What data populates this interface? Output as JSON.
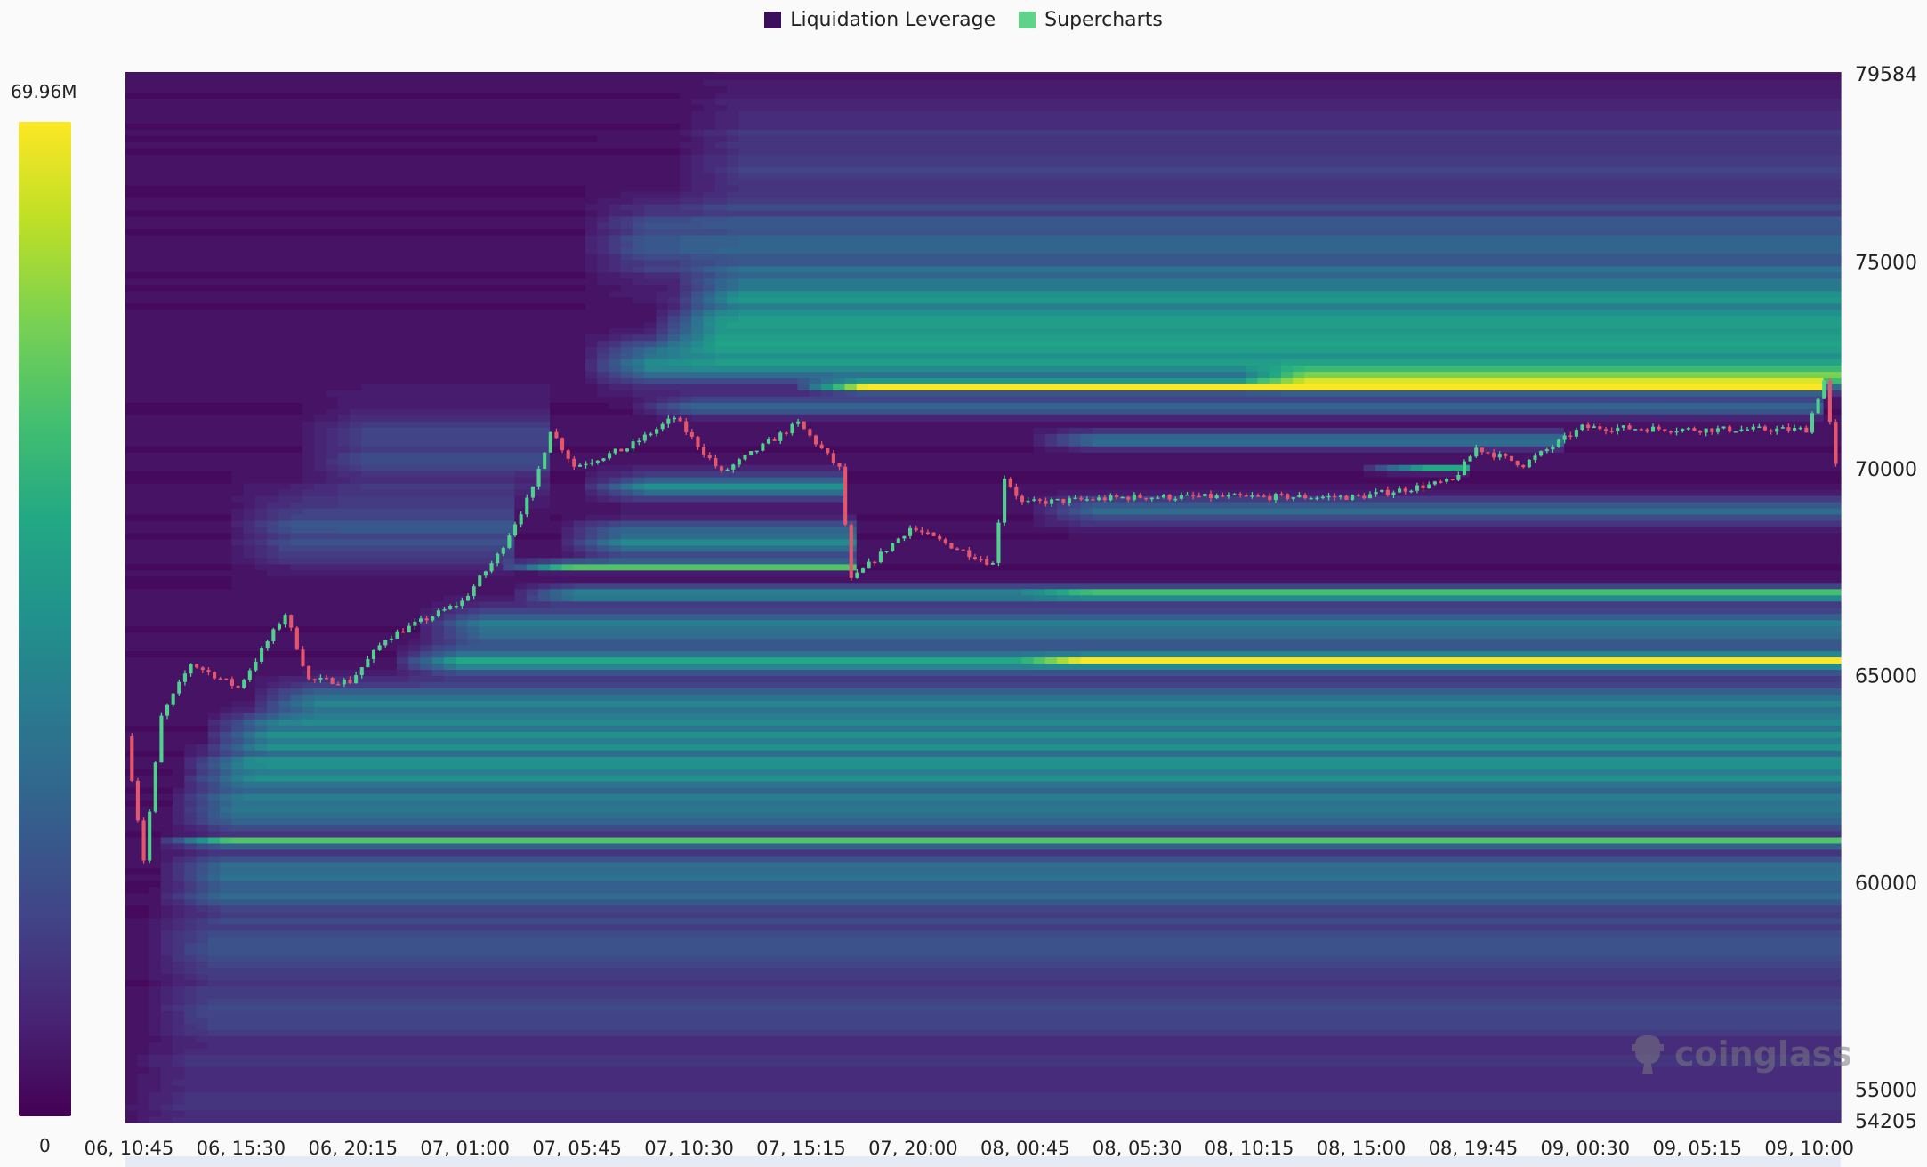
{
  "legend": [
    {
      "label": "Liquidation Leverage",
      "color": "#3b0f5c"
    },
    {
      "label": "Supercharts",
      "color": "#5fd38a"
    }
  ],
  "colorbar": {
    "max_label": "69.96M",
    "min_label": "0"
  },
  "watermark": "coinglass",
  "chart_data": {
    "type": "heatmap",
    "title": "",
    "colorscale": "viridis",
    "value_range": [
      0,
      69.96
    ],
    "y_range": [
      54205,
      79584
    ],
    "y_ticks": [
      "79584",
      "75000",
      "70000",
      "65000",
      "60000",
      "55000",
      "54205"
    ],
    "x_range": [
      "06, 10:36",
      "09, 11:20"
    ],
    "x_ticks": [
      "06, 10:45",
      "06, 15:30",
      "06, 20:15",
      "07, 01:00",
      "07, 05:45",
      "07, 10:30",
      "07, 15:15",
      "07, 20:00",
      "08, 00:45",
      "08, 05:30",
      "08, 10:15",
      "08, 15:00",
      "08, 19:45",
      "09, 00:30",
      "09, 05:15",
      "09, 10:00"
    ],
    "candle_colors": {
      "up": "#4fd08c",
      "down": "#e6566b"
    },
    "price_path": [
      {
        "t": "06, 10:45",
        "p": 63530
      },
      {
        "t": "06, 11:30",
        "p": 60560
      },
      {
        "t": "06, 12:15",
        "p": 64000
      },
      {
        "t": "06, 13:30",
        "p": 65300
      },
      {
        "t": "06, 15:30",
        "p": 64710
      },
      {
        "t": "06, 17:30",
        "p": 66500
      },
      {
        "t": "06, 18:30",
        "p": 64900
      },
      {
        "t": "06, 20:15",
        "p": 64860
      },
      {
        "t": "06, 21:45",
        "p": 65900
      },
      {
        "t": "07, 01:00",
        "p": 66790
      },
      {
        "t": "07, 02:30",
        "p": 67900
      },
      {
        "t": "07, 04:00",
        "p": 69500
      },
      {
        "t": "07, 04:45",
        "p": 70950
      },
      {
        "t": "07, 05:45",
        "p": 70060
      },
      {
        "t": "07, 08:00",
        "p": 70500
      },
      {
        "t": "07, 10:00",
        "p": 71240
      },
      {
        "t": "07, 12:00",
        "p": 69900
      },
      {
        "t": "07, 15:15",
        "p": 71100
      },
      {
        "t": "07, 17:00",
        "p": 70000
      },
      {
        "t": "07, 17:30",
        "p": 67300
      },
      {
        "t": "07, 20:00",
        "p": 68570
      },
      {
        "t": "07, 23:30",
        "p": 67700
      },
      {
        "t": "08, 00:00",
        "p": 69800
      },
      {
        "t": "08, 00:45",
        "p": 69170
      },
      {
        "t": "08, 05:30",
        "p": 69320
      },
      {
        "t": "08, 15:00",
        "p": 69320
      },
      {
        "t": "08, 19:00",
        "p": 69700
      },
      {
        "t": "08, 20:00",
        "p": 70500
      },
      {
        "t": "08, 22:00",
        "p": 70100
      },
      {
        "t": "09, 00:30",
        "p": 71000
      },
      {
        "t": "09, 05:15",
        "p": 70950
      },
      {
        "t": "09, 10:00",
        "p": 70950
      },
      {
        "t": "09, 10:45",
        "p": 72130
      },
      {
        "t": "09, 11:15",
        "p": 70060
      }
    ],
    "liquidation_levels": [
      {
        "price": 55000,
        "strength": 8,
        "spread": 1200,
        "start": "06, 10:36"
      },
      {
        "price": 57000,
        "strength": 10,
        "spread": 900,
        "start": "06, 11:30"
      },
      {
        "price": 58500,
        "strength": 14,
        "spread": 700,
        "start": "06, 11:30"
      },
      {
        "price": 59700,
        "strength": 16,
        "spread": 500,
        "start": "06, 12:00"
      },
      {
        "price": 60300,
        "strength": 22,
        "spread": 400,
        "start": "06, 12:00"
      },
      {
        "price": 61000,
        "strength": 42,
        "spread": 120,
        "start": "06, 12:00"
      },
      {
        "price": 61800,
        "strength": 26,
        "spread": 500,
        "start": "06, 12:30"
      },
      {
        "price": 62700,
        "strength": 30,
        "spread": 500,
        "start": "06, 13:00"
      },
      {
        "price": 63600,
        "strength": 30,
        "spread": 500,
        "start": "06, 14:00"
      },
      {
        "price": 64400,
        "strength": 26,
        "spread": 400,
        "start": "06, 16:00"
      },
      {
        "price": 65400,
        "strength": 34,
        "spread": 300,
        "start": "06, 22:00"
      },
      {
        "price": 65400,
        "strength": 30,
        "spread": 100,
        "start": "08, 00:45"
      },
      {
        "price": 66200,
        "strength": 28,
        "spread": 400,
        "start": "06, 23:00"
      },
      {
        "price": 67000,
        "strength": 30,
        "spread": 200,
        "start": "07, 03:00"
      },
      {
        "price": 67000,
        "strength": 22,
        "spread": 100,
        "start": "08, 00:45"
      },
      {
        "price": 67650,
        "strength": 60,
        "spread": 100,
        "start": "07, 02:30"
      },
      {
        "price": 68300,
        "strength": 28,
        "spread": 400,
        "start": "07, 05:00"
      },
      {
        "price": 68500,
        "strength": 15,
        "spread": 800,
        "start": "06, 15:00"
      },
      {
        "price": 69000,
        "strength": 22,
        "spread": 300,
        "start": "08, 01:00"
      },
      {
        "price": 69600,
        "strength": 28,
        "spread": 300,
        "start": "07, 06:00"
      },
      {
        "price": 70000,
        "strength": 40,
        "spread": 80,
        "start": "08, 15:00"
      },
      {
        "price": 70500,
        "strength": 12,
        "spread": 1000,
        "start": "06, 18:00"
      },
      {
        "price": 70700,
        "strength": 25,
        "spread": 200,
        "start": "08, 01:00"
      },
      {
        "price": 71500,
        "strength": 25,
        "spread": 200,
        "start": "07, 08:00"
      },
      {
        "price": 72000,
        "strength": 62,
        "spread": 120,
        "start": "07, 15:15"
      },
      {
        "price": 72200,
        "strength": 30,
        "spread": 250,
        "start": "08, 10:00"
      },
      {
        "price": 72600,
        "strength": 28,
        "spread": 500,
        "start": "07, 06:00"
      },
      {
        "price": 73400,
        "strength": 30,
        "spread": 600,
        "start": "07, 09:00"
      },
      {
        "price": 74300,
        "strength": 24,
        "spread": 600,
        "start": "07, 10:00"
      },
      {
        "price": 75500,
        "strength": 16,
        "spread": 900,
        "start": "07, 06:00"
      },
      {
        "price": 77500,
        "strength": 9,
        "spread": 1500,
        "start": "07, 10:00"
      }
    ]
  }
}
